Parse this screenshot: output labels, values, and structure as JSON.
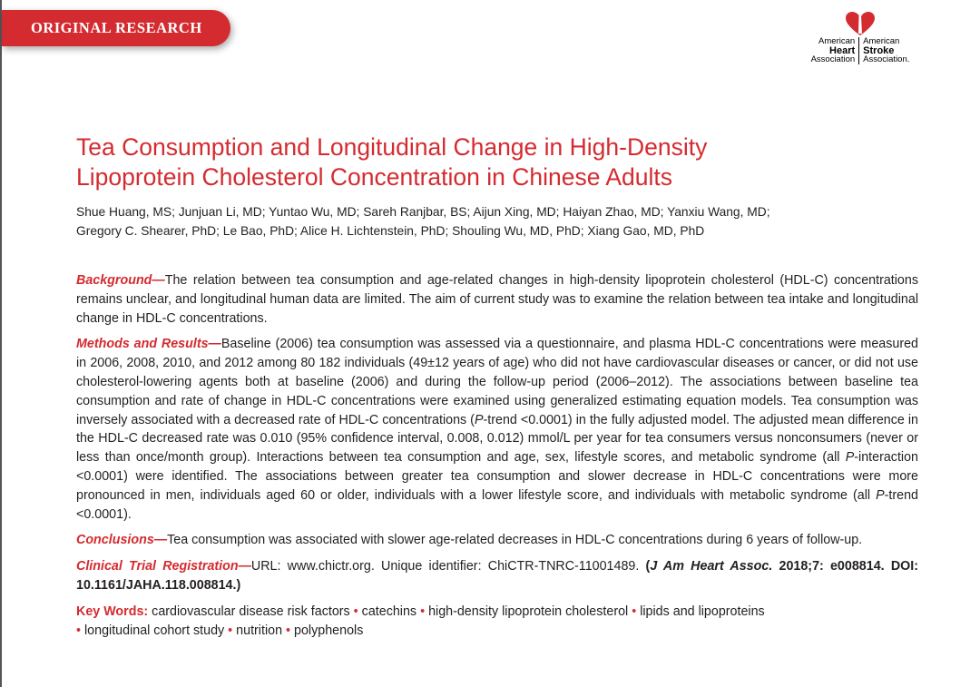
{
  "banner": {
    "label": "ORIGINAL RESEARCH"
  },
  "logo": {
    "left": [
      "American",
      "Heart",
      "Association"
    ],
    "right": [
      "American",
      "Stroke",
      "Association."
    ],
    "accent": "#d42b30"
  },
  "title": {
    "line1": "Tea Consumption and Longitudinal Change in High-Density",
    "line2": "Lipoprotein Cholesterol Concentration in Chinese Adults"
  },
  "authors": {
    "line1": "Shue Huang, MS; Junjuan Li, MD; Yuntao Wu, MD; Sareh Ranjbar, BS; Aijun Xing, MD; Haiyan Zhao, MD; Yanxiu Wang, MD;",
    "line2": "Gregory C. Shearer, PhD; Le Bao, PhD; Alice H. Lichtenstein, PhD; Shouling Wu, MD, PhD; Xiang Gao, MD, PhD"
  },
  "abstract": {
    "background": {
      "label": "Background—",
      "text": "The relation between tea consumption and age-related changes in high-density lipoprotein cholesterol (HDL-C) concentrations remains unclear, and longitudinal human data are limited. The aim of current study was to examine the relation between tea intake and longitudinal change in HDL-C concentrations."
    },
    "methods": {
      "label": "Methods and Results—",
      "t1": "Baseline (2006) tea consumption was assessed via a questionnaire, and plasma HDL-C concentrations were measured in 2006, 2008, 2010, and 2012 among 80 182 individuals (49±12 years of age) who did not have cardiovascular diseases or cancer, or did not use cholesterol-lowering agents both at baseline (2006) and during the follow-up period (2006–2012). The associations between baseline tea consumption and rate of change in HDL-C concentrations were examined using generalized estimating equation models. Tea consumption was inversely associated with a decreased rate of HDL-C concentrations (",
      "p1": "P",
      "t2": "-trend <0.0001) in the fully adjusted model. The adjusted mean difference in the HDL-C decreased rate was 0.010 (95% confidence interval, 0.008, 0.012) mmol/L per year for tea consumers versus nonconsumers (never or less than once/month group). Interactions between tea consumption and age, sex, lifestyle scores, and metabolic syndrome (all ",
      "p2": "P",
      "t3": "-interaction <0.0001) were identified. The associations between greater tea consumption and slower decrease in HDL-C concentrations were more pronounced in men, individuals aged 60 or older, individuals with a lower lifestyle score, and individuals with metabolic syndrome (all ",
      "p3": "P",
      "t4": "-trend <0.0001)."
    },
    "conclusions": {
      "label": "Conclusions—",
      "text": "Tea consumption was associated with slower age-related decreases in HDL-C concentrations during 6 years of follow-up."
    },
    "registration": {
      "label": "Clinical Trial Registration—",
      "text": "URL: www.chictr.org. Unique identifier: ChiCTR-TNRC-11001489. ",
      "cite_open": "(",
      "journal": "J Am Heart Assoc.",
      "cite_rest": " 2018;7: e008814. DOI: 10.1161/JAHA.118.008814.)"
    },
    "keywords": {
      "label": "Key Words:",
      "items": [
        "cardiovascular disease risk factors",
        "catechins",
        "high-density lipoprotein cholesterol",
        "lipids and lipoproteins",
        "longitudinal cohort study",
        "nutrition",
        "polyphenols"
      ]
    }
  }
}
